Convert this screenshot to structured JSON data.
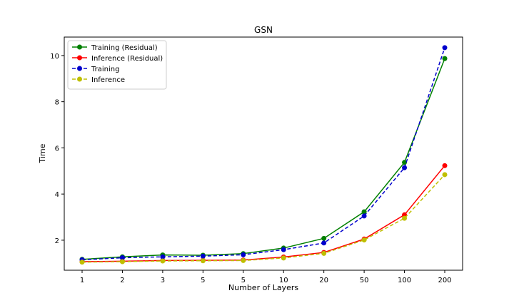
{
  "chart_data": {
    "type": "line",
    "title": "GSN",
    "xlabel": "Number of Layers",
    "ylabel": "Time",
    "categories": [
      "1",
      "2",
      "3",
      "5",
      "5",
      "10",
      "20",
      "50",
      "100",
      "200"
    ],
    "x_ticks_note": "categorical",
    "ylim": [
      0.7,
      10.8
    ],
    "y_ticks": [
      2,
      4,
      6,
      8,
      10
    ],
    "grid": false,
    "legend_position": "top-left",
    "series": [
      {
        "name": "Training (Residual)",
        "color": "#008000",
        "linestyle": "solid",
        "values": [
          1.17,
          1.28,
          1.36,
          1.35,
          1.42,
          1.66,
          2.08,
          3.23,
          5.37,
          9.87
        ]
      },
      {
        "name": "Inference (Residual)",
        "color": "#ff0000",
        "linestyle": "solid",
        "values": [
          1.07,
          1.09,
          1.12,
          1.13,
          1.14,
          1.27,
          1.47,
          2.05,
          3.1,
          5.23
        ]
      },
      {
        "name": "Training",
        "color": "#0000cc",
        "linestyle": "dashed",
        "values": [
          1.15,
          1.24,
          1.28,
          1.31,
          1.37,
          1.59,
          1.88,
          3.05,
          5.14,
          10.34
        ]
      },
      {
        "name": "Inference",
        "color": "#bfbf00",
        "linestyle": "dashed",
        "values": [
          1.05,
          1.07,
          1.1,
          1.11,
          1.12,
          1.23,
          1.43,
          2.01,
          2.95,
          4.84
        ]
      }
    ]
  }
}
